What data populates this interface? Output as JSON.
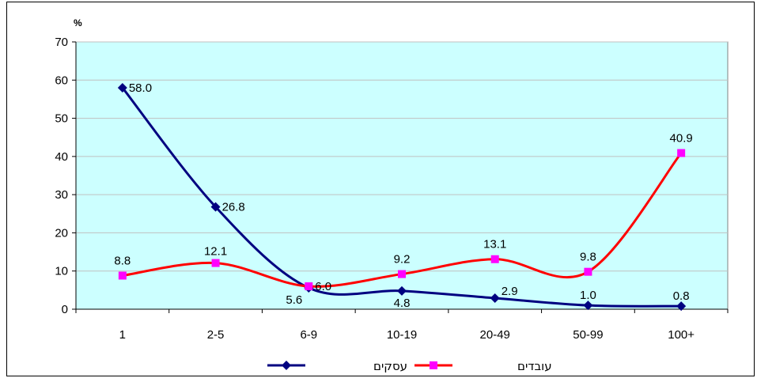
{
  "chart_data": {
    "type": "line",
    "unit_label": "%",
    "categories": [
      "1",
      "2-5",
      "6-9",
      "10-19",
      "20-49",
      "50-99",
      "100+"
    ],
    "ylim": [
      0,
      70
    ],
    "yticks": [
      0,
      10,
      20,
      30,
      40,
      50,
      60,
      70
    ],
    "grid": true,
    "legend_position": "bottom",
    "plot_background": "#ccffff",
    "series": [
      {
        "name": "עסקים",
        "color": "#000080",
        "marker": "diamond",
        "values": [
          58.0,
          26.8,
          5.6,
          4.8,
          2.9,
          1.0,
          0.8
        ],
        "labels": [
          "58.0",
          "26.8",
          "5.6",
          "4.8",
          "2.9",
          "1.0",
          "0.8"
        ]
      },
      {
        "name": "עובדים",
        "color": "#ff0000",
        "marker_color": "#ff00ff",
        "marker": "square",
        "values": [
          8.8,
          12.1,
          6.0,
          9.2,
          13.1,
          9.8,
          40.9
        ],
        "labels": [
          "8.8",
          "12.1",
          "6.0",
          "9.2",
          "13.1",
          "9.8",
          "40.9"
        ]
      }
    ]
  }
}
